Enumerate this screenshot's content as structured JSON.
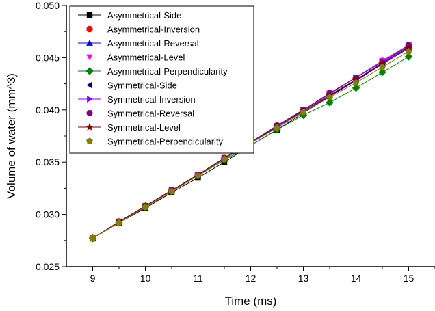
{
  "chart_data": {
    "type": "line",
    "xlabel": "Time (ms)",
    "ylabel": "Volume of water (mm^3)",
    "xlim": [
      8.5,
      15.5
    ],
    "ylim": [
      0.025,
      0.05
    ],
    "x_ticks": [
      "9",
      "10",
      "11",
      "12",
      "13",
      "14",
      "15"
    ],
    "y_ticks": [
      "0.025",
      "0.030",
      "0.035",
      "0.040",
      "0.045",
      "0.050"
    ],
    "grid": false,
    "legend_position": "top-left",
    "x": [
      9,
      9.5,
      10,
      10.5,
      11,
      11.5,
      12,
      12.5,
      13,
      13.5,
      14,
      14.5,
      15
    ],
    "series": [
      {
        "name": "Asymmetrical-Side",
        "color": "#000000",
        "marker": "square",
        "values": [
          0.0277,
          0.0292,
          0.0306,
          0.0321,
          0.0335,
          0.035,
          0.0366,
          0.0381,
          0.0397,
          0.0413,
          0.0429,
          0.0445,
          0.046
        ]
      },
      {
        "name": "Asymmetrical-Inversion",
        "color": "#ff0000",
        "marker": "circle",
        "values": [
          0.0277,
          0.0293,
          0.0308,
          0.0323,
          0.0338,
          0.0354,
          0.0369,
          0.0385,
          0.04,
          0.0416,
          0.0431,
          0.0447,
          0.0462
        ]
      },
      {
        "name": "Asymmetrical-Reversal",
        "color": "#0000ff",
        "marker": "triangle-up",
        "values": [
          0.0277,
          0.0293,
          0.0308,
          0.0323,
          0.0338,
          0.0353,
          0.0368,
          0.0384,
          0.0399,
          0.0414,
          0.0429,
          0.0445,
          0.046
        ]
      },
      {
        "name": "Asymmetrical-Level",
        "color": "#ff00ff",
        "marker": "triangle-down",
        "values": [
          0.0277,
          0.0293,
          0.0308,
          0.0323,
          0.0338,
          0.0354,
          0.0369,
          0.0385,
          0.04,
          0.0416,
          0.0431,
          0.0447,
          0.0462
        ]
      },
      {
        "name": "Asymmetrical-Perpendicularity",
        "color": "#008000",
        "marker": "diamond",
        "values": [
          0.0277,
          0.0292,
          0.0307,
          0.0322,
          0.0337,
          0.0352,
          0.0366,
          0.0381,
          0.0395,
          0.0407,
          0.0421,
          0.0436,
          0.0451
        ]
      },
      {
        "name": "Symmetrical-Side",
        "color": "#000080",
        "marker": "triangle-left",
        "values": [
          0.0277,
          0.0293,
          0.0308,
          0.0323,
          0.0338,
          0.0353,
          0.0368,
          0.0383,
          0.0398,
          0.0413,
          0.0428,
          0.0444,
          0.0459
        ]
      },
      {
        "name": "Symmetrical-Inversion",
        "color": "#8000ff",
        "marker": "triangle-right",
        "values": [
          0.0277,
          0.0293,
          0.0308,
          0.0323,
          0.0338,
          0.0354,
          0.0369,
          0.0384,
          0.04,
          0.0415,
          0.0431,
          0.0446,
          0.0461
        ]
      },
      {
        "name": "Symmetrical-Reversal",
        "color": "#800080",
        "marker": "hexagon",
        "values": [
          0.0277,
          0.0293,
          0.0308,
          0.0323,
          0.0338,
          0.0354,
          0.0369,
          0.0385,
          0.04,
          0.0416,
          0.0431,
          0.0446,
          0.0462
        ]
      },
      {
        "name": "Symmetrical-Level",
        "color": "#800000",
        "marker": "star",
        "values": [
          0.0277,
          0.0293,
          0.0308,
          0.0323,
          0.0338,
          0.0353,
          0.0368,
          0.0384,
          0.0399,
          0.0414,
          0.0429,
          0.0444,
          0.0459
        ]
      },
      {
        "name": "Symmetrical-Perpendicularity",
        "color": "#808000",
        "marker": "pentagon",
        "values": [
          0.0277,
          0.0292,
          0.0307,
          0.0322,
          0.0337,
          0.0353,
          0.0368,
          0.0383,
          0.0398,
          0.0412,
          0.0426,
          0.0441,
          0.0456
        ]
      }
    ]
  }
}
